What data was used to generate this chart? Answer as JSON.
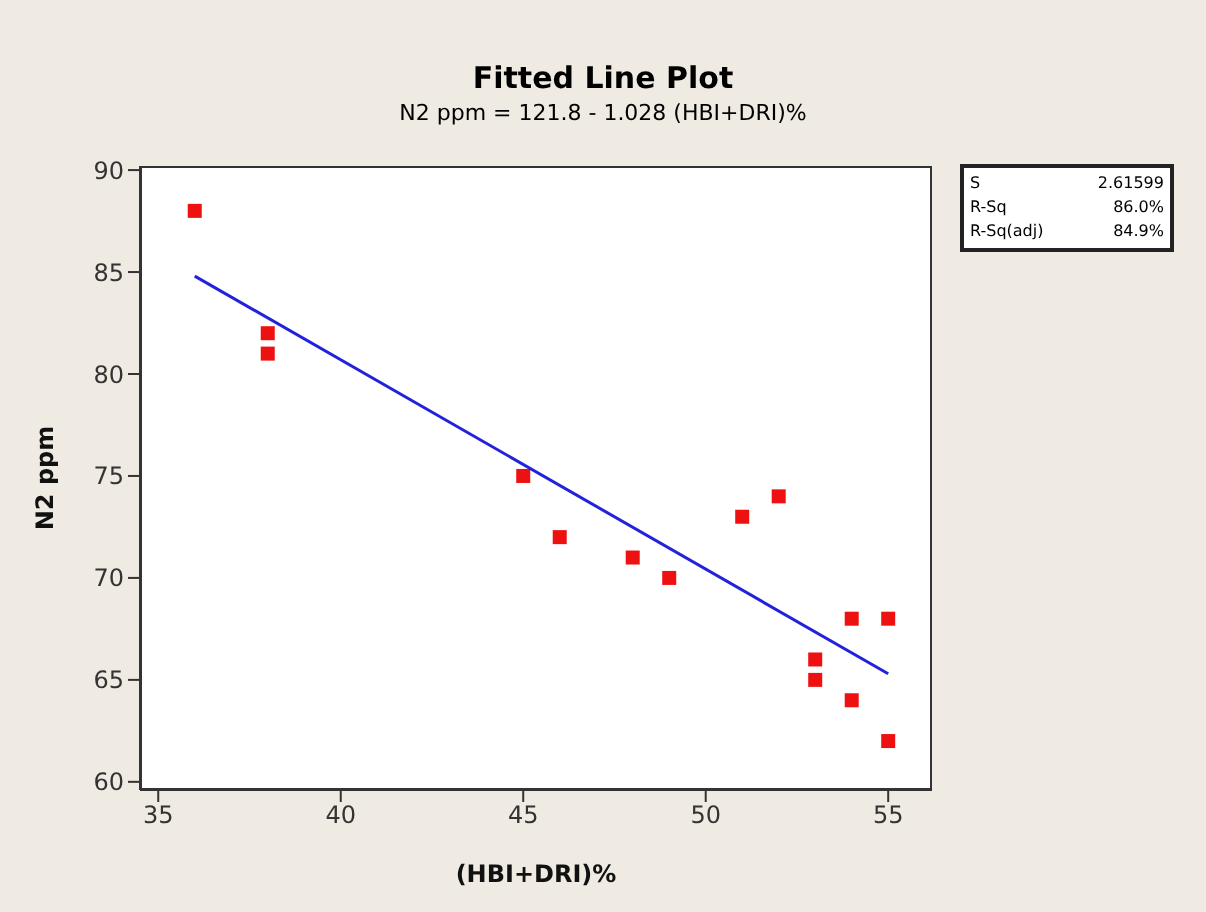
{
  "chart_data": {
    "type": "scatter",
    "title": "Fitted Line Plot",
    "subtitle": "N2 ppm =  121.8 - 1.028 (HBI+DRI)%",
    "xlabel": "(HBI+DRI)%",
    "ylabel": "N2 ppm",
    "xlim": [
      34.5,
      56.2
    ],
    "ylim": [
      59.6,
      90.2
    ],
    "xticks": [
      35,
      40,
      45,
      50,
      55
    ],
    "yticks": [
      60,
      65,
      70,
      75,
      80,
      85,
      90
    ],
    "marker": "square",
    "annotations": [
      "S",
      "2.61599",
      "R-Sq",
      "86.0%",
      "R-Sq(adj)",
      "84.9%"
    ],
    "series": [
      {
        "color": "#ee1111",
        "x": [
          36,
          38,
          38,
          45,
          46,
          48,
          49,
          51,
          52,
          53,
          53,
          54,
          54,
          55,
          55
        ],
        "values": [
          88,
          82,
          81,
          75,
          72,
          71,
          70,
          73,
          74,
          66,
          65,
          68,
          64,
          68,
          62
        ]
      },
      {
        "type": "line",
        "color": "#2222dd",
        "marker": "none",
        "x": [
          36,
          55
        ],
        "values": [
          84.8,
          65.3
        ]
      }
    ]
  }
}
